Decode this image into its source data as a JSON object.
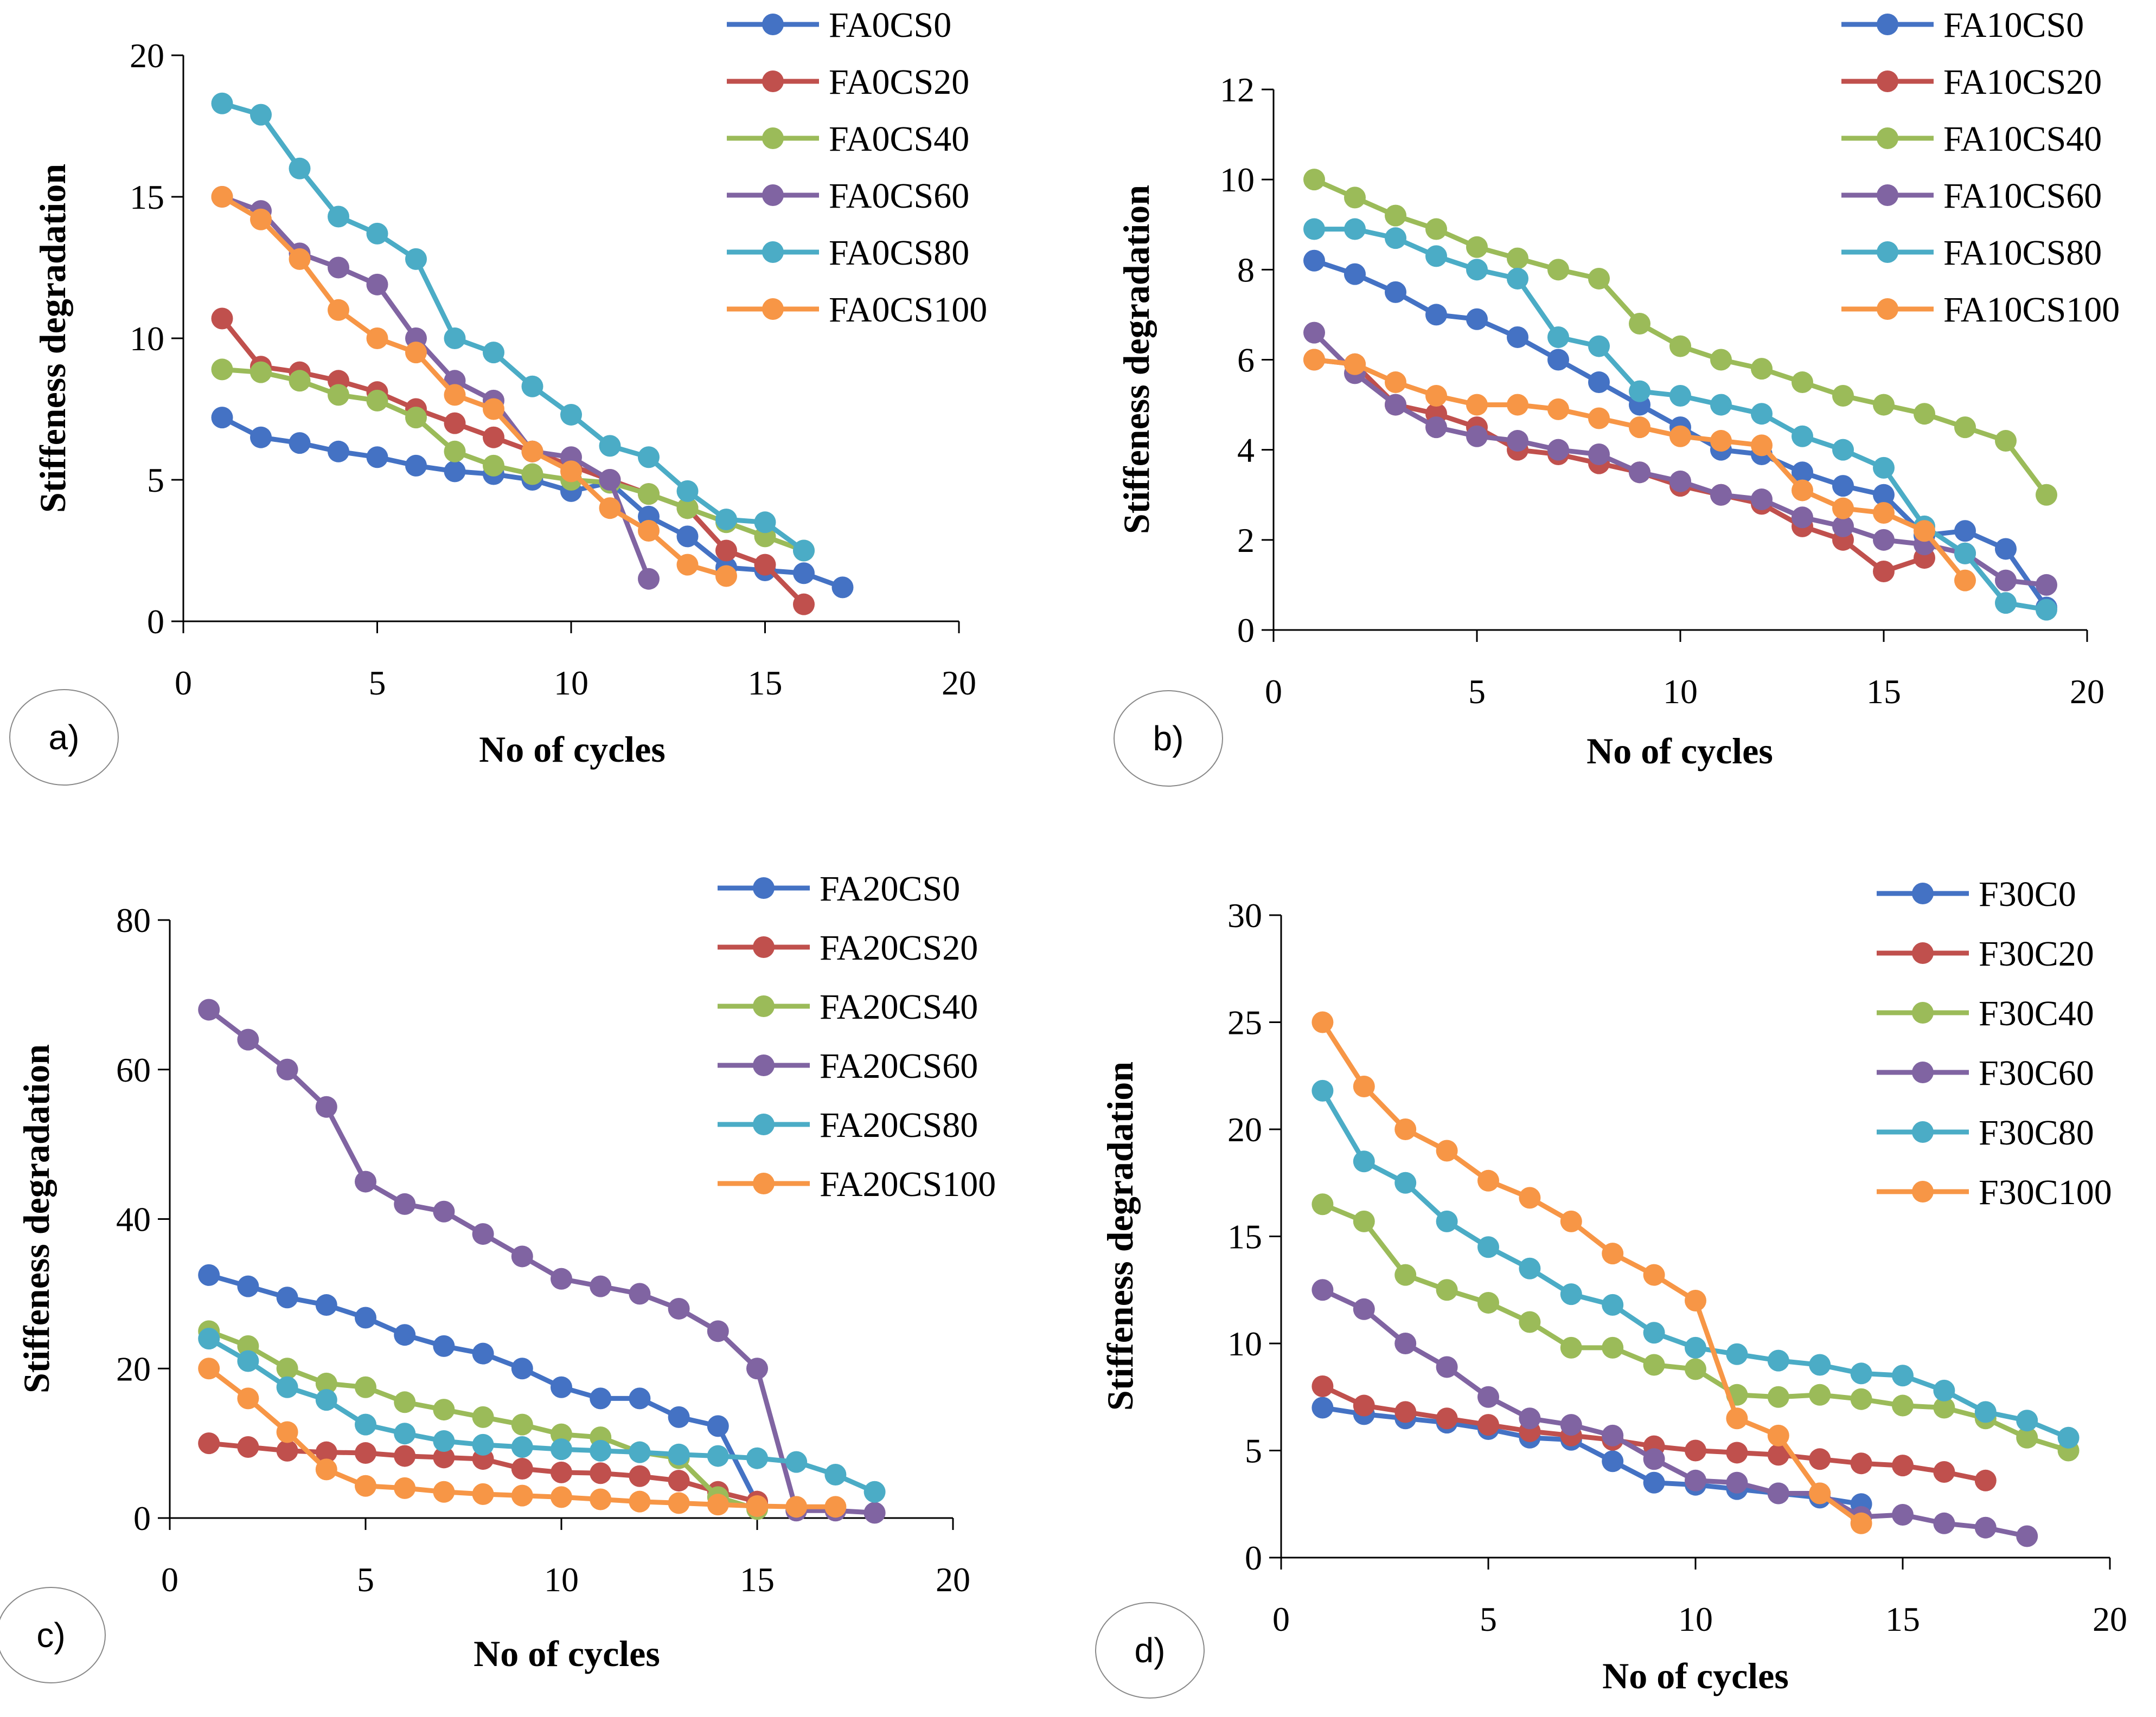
{
  "chart_data": [
    {
      "type": "line",
      "panel_label": "a)",
      "xlabel": "No of cycles",
      "ylabel": "Stiffeness degradation",
      "xlim": [
        0,
        20
      ],
      "ylim": [
        0,
        20
      ],
      "xticks": [
        0,
        5,
        10,
        15,
        20
      ],
      "yticks": [
        0,
        5,
        10,
        15,
        20
      ],
      "legend_position": "top-right",
      "series": [
        {
          "name": "FA0CS0",
          "color": "#4472C4",
          "x": [
            1,
            2,
            3,
            4,
            5,
            6,
            7,
            8,
            9,
            10,
            11,
            12,
            13,
            14,
            15,
            16,
            17
          ],
          "y": [
            7.2,
            6.5,
            6.3,
            6.0,
            5.8,
            5.5,
            5.3,
            5.2,
            5.0,
            4.6,
            4.9,
            3.7,
            3.0,
            1.9,
            1.8,
            1.7,
            1.2
          ]
        },
        {
          "name": "FA0CS20",
          "color": "#C0504D",
          "x": [
            1,
            2,
            3,
            4,
            5,
            6,
            7,
            8,
            9,
            10,
            11,
            12,
            13,
            14,
            15,
            16
          ],
          "y": [
            10.7,
            9.0,
            8.8,
            8.5,
            8.1,
            7.5,
            7.0,
            6.5,
            6.0,
            5.5,
            5.0,
            4.5,
            4.0,
            2.5,
            2.0,
            0.6
          ]
        },
        {
          "name": "FA0CS40",
          "color": "#9BBB59",
          "x": [
            1,
            2,
            3,
            4,
            5,
            6,
            7,
            8,
            9,
            10,
            11,
            12,
            13,
            14,
            15,
            16
          ],
          "y": [
            8.9,
            8.8,
            8.5,
            8.0,
            7.8,
            7.2,
            6.0,
            5.5,
            5.2,
            5.0,
            4.9,
            4.5,
            4.0,
            3.5,
            3.0,
            2.5
          ]
        },
        {
          "name": "FA0CS60",
          "color": "#8064A2",
          "x": [
            1,
            2,
            3,
            4,
            5,
            6,
            7,
            8,
            9,
            10,
            11,
            12
          ],
          "y": [
            15.0,
            14.5,
            13.0,
            12.5,
            11.9,
            10.0,
            8.5,
            7.8,
            6.0,
            5.8,
            5.0,
            1.5
          ]
        },
        {
          "name": "FA0CS80",
          "color": "#4BACC6",
          "x": [
            1,
            2,
            3,
            4,
            5,
            6,
            7,
            8,
            9,
            10,
            11,
            12,
            13,
            14,
            15,
            16
          ],
          "y": [
            18.3,
            17.9,
            16.0,
            14.3,
            13.7,
            12.8,
            10.0,
            9.5,
            8.3,
            7.3,
            6.2,
            5.8,
            4.6,
            3.6,
            3.5,
            2.5
          ]
        },
        {
          "name": "FA0CS100",
          "color": "#F79646",
          "x": [
            1,
            2,
            3,
            4,
            5,
            6,
            7,
            8,
            9,
            10,
            11,
            12,
            13,
            14
          ],
          "y": [
            15.0,
            14.2,
            12.8,
            11.0,
            10.0,
            9.5,
            8.0,
            7.5,
            6.0,
            5.3,
            4.0,
            3.2,
            2.0,
            1.6
          ]
        }
      ]
    },
    {
      "type": "line",
      "panel_label": "b)",
      "xlabel": "No of cycles",
      "ylabel": "Stiffeness  degradation",
      "xlim": [
        0,
        20
      ],
      "ylim": [
        0,
        12
      ],
      "xticks": [
        0,
        5,
        10,
        15,
        20
      ],
      "yticks": [
        0,
        2,
        4,
        6,
        8,
        10,
        12
      ],
      "legend_position": "top-right",
      "series": [
        {
          "name": "FA10CS0",
          "color": "#4472C4",
          "x": [
            1,
            2,
            3,
            4,
            5,
            6,
            7,
            8,
            9,
            10,
            11,
            12,
            13,
            14,
            15,
            16,
            17,
            18,
            19
          ],
          "y": [
            8.2,
            7.9,
            7.5,
            7.0,
            6.9,
            6.5,
            6.0,
            5.5,
            5.0,
            4.5,
            4.0,
            3.9,
            3.5,
            3.2,
            3.0,
            2.1,
            2.2,
            1.8,
            0.5
          ]
        },
        {
          "name": "FA10CS20",
          "color": "#C0504D",
          "x": [
            1,
            2,
            3,
            4,
            5,
            6,
            7,
            8,
            9,
            10,
            11,
            12,
            13,
            14,
            15,
            16
          ],
          "y": [
            6.0,
            5.9,
            5.0,
            4.8,
            4.5,
            4.0,
            3.9,
            3.7,
            3.5,
            3.2,
            3.0,
            2.8,
            2.3,
            2.0,
            1.3,
            1.6
          ]
        },
        {
          "name": "FA10CS40",
          "color": "#9BBB59",
          "x": [
            1,
            2,
            3,
            4,
            5,
            6,
            7,
            8,
            9,
            10,
            11,
            12,
            13,
            14,
            15,
            16,
            17,
            18,
            19
          ],
          "y": [
            10.0,
            9.6,
            9.2,
            8.9,
            8.5,
            8.25,
            8.0,
            7.8,
            6.8,
            6.3,
            6.0,
            5.8,
            5.5,
            5.2,
            5.0,
            4.8,
            4.5,
            4.2,
            3.0
          ]
        },
        {
          "name": "FA10CS60",
          "color": "#8064A2",
          "x": [
            1,
            2,
            3,
            4,
            5,
            6,
            7,
            8,
            9,
            10,
            11,
            12,
            13,
            14,
            15,
            16,
            17,
            18,
            19
          ],
          "y": [
            6.6,
            5.7,
            5.0,
            4.5,
            4.3,
            4.2,
            4.0,
            3.9,
            3.5,
            3.3,
            3.0,
            2.9,
            2.5,
            2.3,
            2.0,
            1.9,
            1.7,
            1.1,
            1.0
          ]
        },
        {
          "name": "FA10CS80",
          "color": "#4BACC6",
          "x": [
            1,
            2,
            3,
            4,
            5,
            6,
            7,
            8,
            9,
            10,
            11,
            12,
            13,
            14,
            15,
            16,
            17,
            18,
            19
          ],
          "y": [
            8.9,
            8.9,
            8.7,
            8.3,
            8.0,
            7.8,
            6.5,
            6.3,
            5.3,
            5.2,
            5.0,
            4.8,
            4.3,
            4.0,
            3.6,
            2.3,
            1.7,
            0.6,
            0.45
          ]
        },
        {
          "name": "FA10CS100",
          "color": "#F79646",
          "x": [
            1,
            2,
            3,
            4,
            5,
            6,
            7,
            8,
            9,
            10,
            11,
            12,
            13,
            14,
            15,
            16,
            17
          ],
          "y": [
            6.0,
            5.9,
            5.5,
            5.2,
            5.0,
            5.0,
            4.9,
            4.7,
            4.5,
            4.3,
            4.2,
            4.1,
            3.1,
            2.7,
            2.6,
            2.2,
            1.1
          ]
        }
      ]
    },
    {
      "type": "line",
      "panel_label": "c)",
      "xlabel": "No of cycles",
      "ylabel": "Stiffeness degradation",
      "xlim": [
        0,
        20
      ],
      "ylim": [
        0,
        80
      ],
      "xticks": [
        0,
        5,
        10,
        15,
        20
      ],
      "yticks": [
        0,
        20,
        40,
        60,
        80
      ],
      "legend_position": "top-right",
      "series": [
        {
          "name": "FA20CS0",
          "color": "#4472C4",
          "x": [
            1,
            2,
            3,
            4,
            5,
            6,
            7,
            8,
            9,
            10,
            11,
            12,
            13,
            14,
            15
          ],
          "y": [
            32.5,
            31.0,
            29.5,
            28.5,
            26.8,
            24.5,
            23.0,
            22.0,
            20.0,
            17.5,
            16.0,
            16.0,
            13.5,
            12.3,
            2.0
          ]
        },
        {
          "name": "FA20CS20",
          "color": "#C0504D",
          "x": [
            1,
            2,
            3,
            4,
            5,
            6,
            7,
            8,
            9,
            10,
            11,
            12,
            13,
            14,
            15
          ],
          "y": [
            10.0,
            9.5,
            9.0,
            8.8,
            8.7,
            8.3,
            8.1,
            7.9,
            6.6,
            6.1,
            6.0,
            5.6,
            5.0,
            3.5,
            2.2
          ]
        },
        {
          "name": "FA20CS40",
          "color": "#9BBB59",
          "x": [
            1,
            2,
            3,
            4,
            5,
            6,
            7,
            8,
            9,
            10,
            11,
            12,
            13,
            14,
            15
          ],
          "y": [
            25.0,
            23.0,
            20.0,
            18.0,
            17.5,
            15.5,
            14.5,
            13.5,
            12.5,
            11.2,
            10.8,
            8.8,
            8.0,
            2.8,
            1.2
          ]
        },
        {
          "name": "FA20CS60",
          "color": "#8064A2",
          "x": [
            1,
            2,
            3,
            4,
            5,
            6,
            7,
            8,
            9,
            10,
            11,
            12,
            13,
            14,
            15,
            16,
            17,
            18
          ],
          "y": [
            68.0,
            64.0,
            60.0,
            55.0,
            45.0,
            42.0,
            41.0,
            38.0,
            35.0,
            32.0,
            31.0,
            30.0,
            28.0,
            25.0,
            20.0,
            1.0,
            1.0,
            0.7
          ]
        },
        {
          "name": "FA20CS80",
          "color": "#4BACC6",
          "x": [
            1,
            2,
            3,
            4,
            5,
            6,
            7,
            8,
            9,
            10,
            11,
            12,
            13,
            14,
            15,
            16,
            17,
            18
          ],
          "y": [
            24.0,
            21.0,
            17.5,
            15.8,
            12.5,
            11.3,
            10.3,
            9.8,
            9.5,
            9.2,
            9.0,
            8.8,
            8.5,
            8.3,
            8.0,
            7.5,
            5.8,
            3.5
          ]
        },
        {
          "name": "FA20CS100",
          "color": "#F79646",
          "x": [
            1,
            2,
            3,
            4,
            5,
            6,
            7,
            8,
            9,
            10,
            11,
            12,
            13,
            14,
            15,
            16,
            17
          ],
          "y": [
            20.0,
            16.0,
            11.5,
            6.5,
            4.3,
            4.0,
            3.5,
            3.2,
            3.0,
            2.8,
            2.5,
            2.2,
            2.0,
            1.8,
            1.6,
            1.5,
            1.5
          ]
        }
      ]
    },
    {
      "type": "line",
      "panel_label": "d)",
      "xlabel": "No of cycles",
      "ylabel": "Stiffeness degradation",
      "xlim": [
        0,
        20
      ],
      "ylim": [
        0,
        30
      ],
      "xticks": [
        0,
        5,
        10,
        15,
        20
      ],
      "yticks": [
        0,
        5,
        10,
        15,
        20,
        25,
        30
      ],
      "legend_position": "top-right",
      "series": [
        {
          "name": "F30C0",
          "color": "#4472C4",
          "x": [
            1,
            2,
            3,
            4,
            5,
            6,
            7,
            8,
            9,
            10,
            11,
            12,
            13,
            14
          ],
          "y": [
            7.0,
            6.7,
            6.5,
            6.3,
            6.0,
            5.6,
            5.5,
            4.5,
            3.5,
            3.4,
            3.2,
            3.0,
            2.8,
            2.5
          ]
        },
        {
          "name": "F30C20",
          "color": "#C0504D",
          "x": [
            1,
            2,
            3,
            4,
            5,
            6,
            7,
            8,
            9,
            10,
            11,
            12,
            13,
            14,
            15,
            16,
            17
          ],
          "y": [
            8.0,
            7.1,
            6.8,
            6.5,
            6.2,
            5.9,
            5.7,
            5.5,
            5.2,
            5.0,
            4.9,
            4.8,
            4.6,
            4.4,
            4.3,
            4.0,
            3.6
          ]
        },
        {
          "name": "F30C40",
          "color": "#9BBB59",
          "x": [
            1,
            2,
            3,
            4,
            5,
            6,
            7,
            8,
            9,
            10,
            11,
            12,
            13,
            14,
            15,
            16,
            17,
            18,
            19
          ],
          "y": [
            16.5,
            15.7,
            13.2,
            12.5,
            11.9,
            11.0,
            9.8,
            9.8,
            9.0,
            8.8,
            7.6,
            7.5,
            7.6,
            7.4,
            7.1,
            7.0,
            6.5,
            5.6,
            5.0
          ]
        },
        {
          "name": "F30C60",
          "color": "#8064A2",
          "x": [
            1,
            2,
            3,
            4,
            5,
            6,
            7,
            8,
            9,
            10,
            11,
            12,
            13,
            14,
            15,
            16,
            17,
            18
          ],
          "y": [
            12.5,
            11.6,
            10.0,
            8.9,
            7.5,
            6.5,
            6.2,
            5.7,
            4.6,
            3.6,
            3.5,
            3.0,
            3.0,
            1.9,
            2.0,
            1.6,
            1.4,
            1.0
          ]
        },
        {
          "name": "F30C80",
          "color": "#4BACC6",
          "x": [
            1,
            2,
            3,
            4,
            5,
            6,
            7,
            8,
            9,
            10,
            11,
            12,
            13,
            14,
            15,
            16,
            17,
            18,
            19
          ],
          "y": [
            21.8,
            18.5,
            17.5,
            15.7,
            14.5,
            13.5,
            12.3,
            11.8,
            10.5,
            9.8,
            9.5,
            9.2,
            9.0,
            8.6,
            8.5,
            7.8,
            6.8,
            6.4,
            5.6
          ]
        },
        {
          "name": "F30C100",
          "color": "#F79646",
          "x": [
            1,
            2,
            3,
            4,
            5,
            6,
            7,
            8,
            9,
            10,
            11,
            12,
            13,
            14
          ],
          "y": [
            25.0,
            22.0,
            20.0,
            19.0,
            17.6,
            16.8,
            15.7,
            14.2,
            13.2,
            12.0,
            6.5,
            5.7,
            3.0,
            1.6
          ]
        }
      ]
    }
  ]
}
